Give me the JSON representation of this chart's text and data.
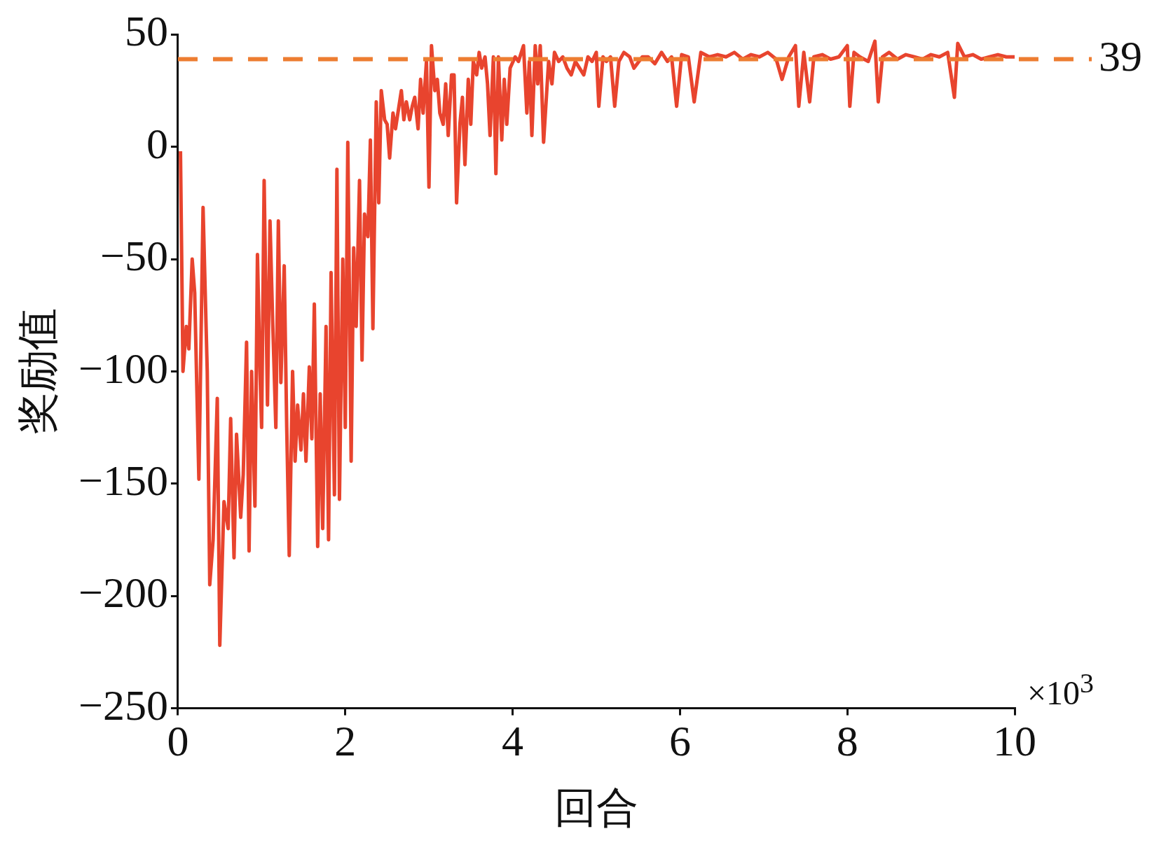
{
  "chart_data": {
    "type": "line",
    "xlabel": "回合",
    "ylabel": "奖励值",
    "xlim": [
      0,
      10
    ],
    "xticks": [
      0,
      2,
      4,
      6,
      8,
      10
    ],
    "ylim": [
      -250,
      50
    ],
    "yticks": [
      50,
      0,
      {
        "value": -50,
        "label": "−50"
      },
      {
        "value": -100,
        "label": "−100"
      },
      {
        "value": -150,
        "label": "−150"
      },
      {
        "value": -200,
        "label": "−200"
      },
      {
        "value": -250,
        "label": "−250"
      }
    ],
    "annotations": [
      "×10$^{3}$"
    ],
    "ref_lines": [
      {
        "axis": "y",
        "value": 39,
        "label": "39",
        "color": "#ed7d31",
        "line_style": "dashed"
      }
    ],
    "grid": false,
    "legend": false,
    "marker": "none",
    "line_style": "solid",
    "series": [
      {
        "color": "#e8442e",
        "x": [
          0.03,
          0.06,
          0.1,
          0.13,
          0.17,
          0.2,
          0.25,
          0.3,
          0.35,
          0.38,
          0.42,
          0.47,
          0.5,
          0.55,
          0.6,
          0.63,
          0.67,
          0.7,
          0.75,
          0.78,
          0.82,
          0.85,
          0.88,
          0.92,
          0.95,
          0.98,
          1.0,
          1.03,
          1.07,
          1.1,
          1.13,
          1.17,
          1.2,
          1.23,
          1.27,
          1.3,
          1.33,
          1.37,
          1.4,
          1.43,
          1.47,
          1.5,
          1.53,
          1.57,
          1.6,
          1.63,
          1.67,
          1.7,
          1.73,
          1.77,
          1.8,
          1.83,
          1.87,
          1.9,
          1.93,
          1.97,
          2.0,
          2.03,
          2.07,
          2.1,
          2.13,
          2.17,
          2.2,
          2.23,
          2.27,
          2.3,
          2.33,
          2.37,
          2.4,
          2.43,
          2.47,
          2.5,
          2.53,
          2.57,
          2.6,
          2.67,
          2.7,
          2.73,
          2.77,
          2.8,
          2.83,
          2.87,
          2.9,
          2.93,
          2.97,
          3.0,
          3.03,
          3.07,
          3.1,
          3.13,
          3.17,
          3.2,
          3.23,
          3.27,
          3.3,
          3.33,
          3.37,
          3.4,
          3.43,
          3.47,
          3.5,
          3.53,
          3.57,
          3.6,
          3.63,
          3.67,
          3.7,
          3.73,
          3.77,
          3.8,
          3.83,
          3.87,
          3.9,
          3.93,
          3.97,
          4.03,
          4.07,
          4.13,
          4.17,
          4.2,
          4.23,
          4.27,
          4.3,
          4.33,
          4.37,
          4.43,
          4.47,
          4.5,
          4.55,
          4.6,
          4.65,
          4.7,
          4.75,
          4.8,
          4.85,
          4.9,
          4.95,
          5.0,
          5.03,
          5.08,
          5.12,
          5.17,
          5.22,
          5.27,
          5.33,
          5.4,
          5.45,
          5.55,
          5.62,
          5.7,
          5.78,
          5.85,
          5.9,
          5.96,
          6.02,
          6.1,
          6.17,
          6.25,
          6.35,
          6.45,
          6.55,
          6.65,
          6.75,
          6.85,
          6.95,
          7.05,
          7.15,
          7.22,
          7.3,
          7.38,
          7.42,
          7.48,
          7.55,
          7.6,
          7.7,
          7.8,
          7.9,
          8.0,
          8.03,
          8.08,
          8.15,
          8.25,
          8.33,
          8.37,
          8.42,
          8.5,
          8.6,
          8.7,
          8.8,
          8.9,
          9.0,
          9.1,
          9.2,
          9.28,
          9.32,
          9.4,
          9.5,
          9.6,
          9.7,
          9.8,
          9.9,
          10.0
        ],
        "values": [
          -2,
          -100,
          -80,
          -90,
          -50,
          -65,
          -148,
          -27,
          -100,
          -195,
          -175,
          -112,
          -222,
          -158,
          -170,
          -121,
          -183,
          -128,
          -165,
          -146,
          -87,
          -180,
          -100,
          -160,
          -48,
          -100,
          -125,
          -15,
          -115,
          -33,
          -75,
          -125,
          -33,
          -105,
          -53,
          -125,
          -182,
          -100,
          -140,
          -115,
          -135,
          -110,
          -140,
          -98,
          -130,
          -70,
          -178,
          -110,
          -170,
          -80,
          -175,
          -56,
          -155,
          -10,
          -157,
          -50,
          -125,
          2,
          -140,
          -45,
          -80,
          -15,
          -95,
          -30,
          -40,
          3,
          -81,
          20,
          -25,
          25,
          12,
          10,
          -5,
          15,
          8,
          25,
          12,
          20,
          12,
          18,
          22,
          8,
          30,
          15,
          38,
          -18,
          45,
          25,
          30,
          15,
          10,
          28,
          5,
          32,
          32,
          -25,
          10,
          22,
          -8,
          30,
          10,
          38,
          32,
          42,
          35,
          40,
          28,
          5,
          40,
          -12,
          40,
          3,
          30,
          10,
          35,
          40,
          38,
          45,
          15,
          38,
          5,
          45,
          28,
          45,
          2,
          38,
          28,
          42,
          38,
          40,
          35,
          32,
          38,
          35,
          32,
          40,
          38,
          42,
          18,
          40,
          38,
          40,
          18,
          38,
          42,
          40,
          35,
          40,
          40,
          37,
          42,
          38,
          40,
          18,
          41,
          40,
          20,
          42,
          40,
          41,
          40,
          42,
          39,
          41,
          40,
          42,
          39,
          30,
          40,
          45,
          18,
          42,
          20,
          40,
          41,
          39,
          40,
          45,
          18,
          42,
          40,
          38,
          47,
          20,
          40,
          42,
          39,
          41,
          40,
          39,
          41,
          40,
          42,
          22,
          46,
          40,
          41,
          39,
          40,
          41,
          40,
          40
        ]
      }
    ]
  }
}
